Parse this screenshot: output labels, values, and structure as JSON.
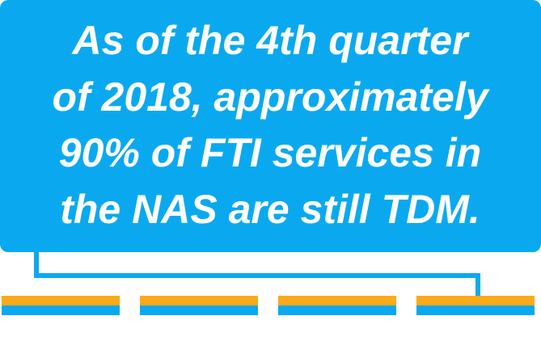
{
  "callout": {
    "lines": [
      "As of the 4th quarter",
      "of 2018, approximately",
      "90% of FTI services in",
      "the NAS are still TDM."
    ]
  }
}
